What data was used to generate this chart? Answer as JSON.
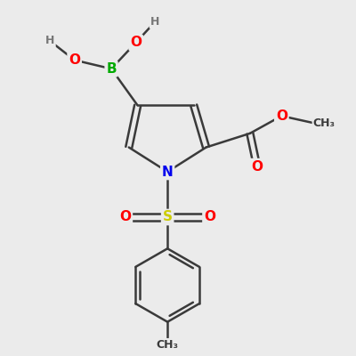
{
  "bg_color": "#ebebeb",
  "bond_color": "#3a3a3a",
  "bond_width": 1.8,
  "atom_colors": {
    "B": "#00aa00",
    "O": "#ff0000",
    "N": "#0000ee",
    "S": "#cccc00",
    "C_label": "#3a3a3a",
    "H": "#777777"
  },
  "font_size_atoms": 11,
  "font_size_small": 9,
  "font_size_methyl": 9
}
